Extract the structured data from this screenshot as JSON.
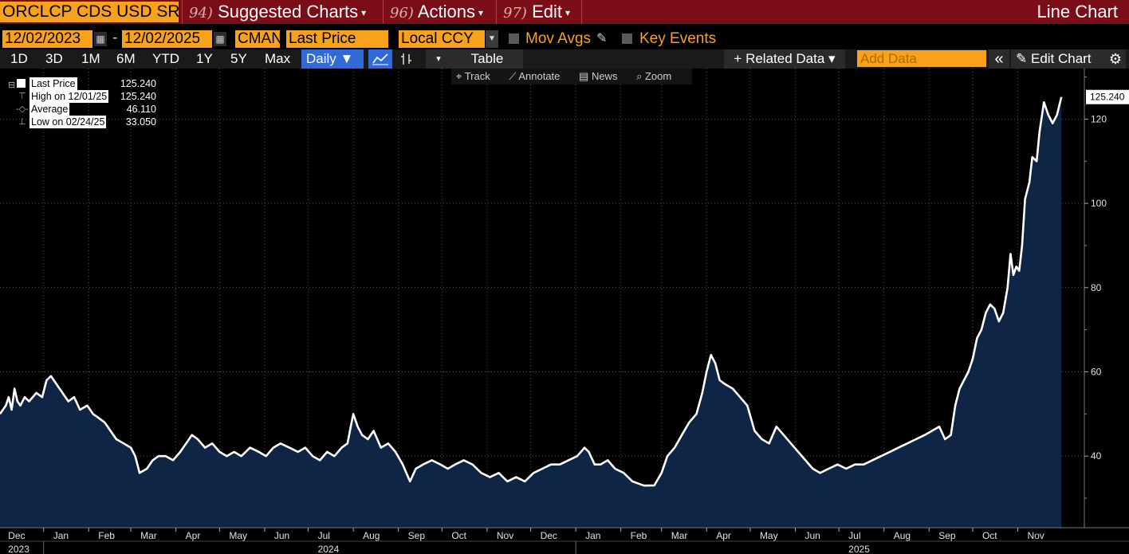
{
  "menubar": {
    "ticker": "ORCLCP CDS USD SR",
    "menus": [
      {
        "num": "94)",
        "label": "Suggested Charts"
      },
      {
        "num": "96)",
        "label": "Actions"
      },
      {
        "num": "97)",
        "label": "Edit"
      }
    ],
    "chart_title": "Line Chart"
  },
  "row2": {
    "start_date": "12/02/2023",
    "separator": "-",
    "end_date": "12/02/2025",
    "source": "CMAN",
    "field": "Last Price",
    "currency": "Local CCY",
    "mov_avgs": "Mov Avgs",
    "key_events": "Key Events"
  },
  "toolbar": {
    "ranges": [
      "1D",
      "3D",
      "1M",
      "6M",
      "YTD",
      "1Y",
      "5Y",
      "Max"
    ],
    "frequency": "Daily ▼",
    "table": "Table",
    "related_data": "+ Related Data ▾",
    "add_data_placeholder": "Add Data",
    "collapse": "«",
    "edit_chart": "Edit Chart",
    "subtools": [
      "Track",
      "Annotate",
      "News",
      "Zoom"
    ]
  },
  "legend": {
    "rows": [
      {
        "label": "Last Price",
        "value": "125.240"
      },
      {
        "label": "High on 12/01/25",
        "value": "125.240"
      },
      {
        "label": "Average",
        "value": "46.110"
      },
      {
        "label": "Low on 02/24/25",
        "value": "33.050"
      }
    ]
  },
  "colors": {
    "line": "#ffffff",
    "area": "#0f2546",
    "accent": "#f7a21a",
    "menubar": "#7a0d16",
    "selected": "#2f6ad8"
  },
  "chart_data": {
    "type": "area",
    "ylim": [
      23,
      132
    ],
    "yticks": [
      40,
      60,
      80,
      100,
      120
    ],
    "last_value_label": "125.240",
    "x_start": "2023-12-02",
    "x_end": "2025-12-02",
    "month_ticks": [
      {
        "date": "2023-12-01",
        "label": "Dec"
      },
      {
        "date": "2024-01-01",
        "label": "Jan"
      },
      {
        "date": "2024-02-01",
        "label": "Feb"
      },
      {
        "date": "2024-03-01",
        "label": "Mar"
      },
      {
        "date": "2024-04-01",
        "label": "Apr"
      },
      {
        "date": "2024-05-01",
        "label": "May"
      },
      {
        "date": "2024-06-01",
        "label": "Jun"
      },
      {
        "date": "2024-07-01",
        "label": "Jul"
      },
      {
        "date": "2024-08-01",
        "label": "Aug"
      },
      {
        "date": "2024-09-01",
        "label": "Sep"
      },
      {
        "date": "2024-10-01",
        "label": "Oct"
      },
      {
        "date": "2024-11-01",
        "label": "Nov"
      },
      {
        "date": "2024-12-01",
        "label": "Dec"
      },
      {
        "date": "2025-01-01",
        "label": "Jan"
      },
      {
        "date": "2025-02-01",
        "label": "Feb"
      },
      {
        "date": "2025-03-01",
        "label": "Mar"
      },
      {
        "date": "2025-04-01",
        "label": "Apr"
      },
      {
        "date": "2025-05-01",
        "label": "May"
      },
      {
        "date": "2025-06-01",
        "label": "Jun"
      },
      {
        "date": "2025-07-01",
        "label": "Jul"
      },
      {
        "date": "2025-08-01",
        "label": "Aug"
      },
      {
        "date": "2025-09-01",
        "label": "Sep"
      },
      {
        "date": "2025-10-01",
        "label": "Oct"
      },
      {
        "date": "2025-11-01",
        "label": "Nov"
      }
    ],
    "year_labels": [
      {
        "date": "2023-12-01",
        "label": "2023"
      },
      {
        "date": "2024-07-01",
        "label": "2024"
      },
      {
        "date": "2025-07-01",
        "label": "2025"
      }
    ],
    "year_dividers": [
      "2024-01-01",
      "2025-01-01"
    ],
    "series": [
      {
        "points": [
          [
            "2023-12-02",
            50
          ],
          [
            "2023-12-06",
            52
          ],
          [
            "2023-12-08",
            54
          ],
          [
            "2023-12-10",
            51
          ],
          [
            "2023-12-12",
            56
          ],
          [
            "2023-12-14",
            53
          ],
          [
            "2023-12-16",
            52
          ],
          [
            "2023-12-19",
            54
          ],
          [
            "2023-12-22",
            53
          ],
          [
            "2023-12-27",
            55
          ],
          [
            "2023-12-31",
            54
          ],
          [
            "2024-01-03",
            58
          ],
          [
            "2024-01-06",
            59
          ],
          [
            "2024-01-10",
            57
          ],
          [
            "2024-01-14",
            55
          ],
          [
            "2024-01-18",
            53
          ],
          [
            "2024-01-22",
            54
          ],
          [
            "2024-01-26",
            51
          ],
          [
            "2024-01-31",
            52
          ],
          [
            "2024-02-04",
            50
          ],
          [
            "2024-02-08",
            49
          ],
          [
            "2024-02-12",
            48
          ],
          [
            "2024-02-16",
            46
          ],
          [
            "2024-02-20",
            44
          ],
          [
            "2024-02-25",
            43
          ],
          [
            "2024-03-01",
            42
          ],
          [
            "2024-03-04",
            40
          ],
          [
            "2024-03-07",
            36
          ],
          [
            "2024-03-12",
            37
          ],
          [
            "2024-03-16",
            39
          ],
          [
            "2024-03-20",
            40
          ],
          [
            "2024-03-25",
            40
          ],
          [
            "2024-03-30",
            39
          ],
          [
            "2024-04-04",
            41
          ],
          [
            "2024-04-08",
            43
          ],
          [
            "2024-04-12",
            45
          ],
          [
            "2024-04-16",
            44
          ],
          [
            "2024-04-21",
            42
          ],
          [
            "2024-04-26",
            43
          ],
          [
            "2024-05-01",
            41
          ],
          [
            "2024-05-06",
            40
          ],
          [
            "2024-05-11",
            41
          ],
          [
            "2024-05-16",
            40
          ],
          [
            "2024-05-22",
            42
          ],
          [
            "2024-05-28",
            41
          ],
          [
            "2024-06-02",
            40
          ],
          [
            "2024-06-07",
            42
          ],
          [
            "2024-06-12",
            43
          ],
          [
            "2024-06-18",
            42
          ],
          [
            "2024-06-24",
            41
          ],
          [
            "2024-06-29",
            42
          ],
          [
            "2024-07-04",
            40
          ],
          [
            "2024-07-09",
            39
          ],
          [
            "2024-07-14",
            41
          ],
          [
            "2024-07-19",
            40
          ],
          [
            "2024-07-24",
            42
          ],
          [
            "2024-07-28",
            43
          ],
          [
            "2024-08-01",
            50
          ],
          [
            "2024-08-04",
            47
          ],
          [
            "2024-08-07",
            45
          ],
          [
            "2024-08-11",
            44
          ],
          [
            "2024-08-15",
            46
          ],
          [
            "2024-08-20",
            42
          ],
          [
            "2024-08-25",
            43
          ],
          [
            "2024-08-30",
            41
          ],
          [
            "2024-09-04",
            38
          ],
          [
            "2024-09-09",
            34
          ],
          [
            "2024-09-13",
            37
          ],
          [
            "2024-09-18",
            38
          ],
          [
            "2024-09-24",
            39
          ],
          [
            "2024-09-30",
            38
          ],
          [
            "2024-10-05",
            37
          ],
          [
            "2024-10-10",
            38
          ],
          [
            "2024-10-16",
            39
          ],
          [
            "2024-10-22",
            38
          ],
          [
            "2024-10-28",
            36
          ],
          [
            "2024-11-03",
            35
          ],
          [
            "2024-11-09",
            36
          ],
          [
            "2024-11-15",
            34
          ],
          [
            "2024-11-21",
            35
          ],
          [
            "2024-11-27",
            34
          ],
          [
            "2024-12-03",
            36
          ],
          [
            "2024-12-09",
            37
          ],
          [
            "2024-12-15",
            38
          ],
          [
            "2024-12-21",
            38
          ],
          [
            "2024-12-27",
            39
          ],
          [
            "2025-01-02",
            40
          ],
          [
            "2025-01-07",
            42
          ],
          [
            "2025-01-10",
            41
          ],
          [
            "2025-01-14",
            38
          ],
          [
            "2025-01-18",
            38
          ],
          [
            "2025-01-23",
            39
          ],
          [
            "2025-01-28",
            37
          ],
          [
            "2025-02-03",
            36
          ],
          [
            "2025-02-09",
            34
          ],
          [
            "2025-02-17",
            33
          ],
          [
            "2025-02-24",
            33.05
          ],
          [
            "2025-03-01",
            36
          ],
          [
            "2025-03-05",
            40
          ],
          [
            "2025-03-10",
            42
          ],
          [
            "2025-03-15",
            45
          ],
          [
            "2025-03-20",
            48
          ],
          [
            "2025-03-25",
            50
          ],
          [
            "2025-03-29",
            55
          ],
          [
            "2025-04-01",
            60
          ],
          [
            "2025-04-04",
            64
          ],
          [
            "2025-04-07",
            62
          ],
          [
            "2025-04-10",
            58
          ],
          [
            "2025-04-14",
            57
          ],
          [
            "2025-04-19",
            56
          ],
          [
            "2025-04-24",
            54
          ],
          [
            "2025-04-29",
            52
          ],
          [
            "2025-05-04",
            46
          ],
          [
            "2025-05-09",
            44
          ],
          [
            "2025-05-14",
            43
          ],
          [
            "2025-05-19",
            47
          ],
          [
            "2025-05-24",
            45
          ],
          [
            "2025-05-29",
            43
          ],
          [
            "2025-06-03",
            41
          ],
          [
            "2025-06-08",
            39
          ],
          [
            "2025-06-13",
            37
          ],
          [
            "2025-06-18",
            36
          ],
          [
            "2025-06-24",
            37
          ],
          [
            "2025-06-30",
            38
          ],
          [
            "2025-07-06",
            37
          ],
          [
            "2025-07-12",
            38
          ],
          [
            "2025-07-18",
            38
          ],
          [
            "2025-07-24",
            39
          ],
          [
            "2025-07-30",
            40
          ],
          [
            "2025-08-05",
            41
          ],
          [
            "2025-08-11",
            42
          ],
          [
            "2025-08-17",
            43
          ],
          [
            "2025-08-23",
            44
          ],
          [
            "2025-08-29",
            45
          ],
          [
            "2025-09-03",
            46
          ],
          [
            "2025-09-08",
            47
          ],
          [
            "2025-09-12",
            44
          ],
          [
            "2025-09-16",
            45
          ],
          [
            "2025-09-19",
            52
          ],
          [
            "2025-09-22",
            56
          ],
          [
            "2025-09-25",
            58
          ],
          [
            "2025-09-28",
            60
          ],
          [
            "2025-10-01",
            63
          ],
          [
            "2025-10-04",
            68
          ],
          [
            "2025-10-07",
            70
          ],
          [
            "2025-10-10",
            74
          ],
          [
            "2025-10-13",
            76
          ],
          [
            "2025-10-16",
            75
          ],
          [
            "2025-10-19",
            72
          ],
          [
            "2025-10-22",
            74
          ],
          [
            "2025-10-25",
            80
          ],
          [
            "2025-10-27",
            88
          ],
          [
            "2025-10-29",
            83
          ],
          [
            "2025-10-31",
            85
          ],
          [
            "2025-11-02",
            84
          ],
          [
            "2025-11-04",
            90
          ],
          [
            "2025-11-06",
            101
          ],
          [
            "2025-11-09",
            105
          ],
          [
            "2025-11-11",
            111
          ],
          [
            "2025-11-14",
            110
          ],
          [
            "2025-11-16",
            117
          ],
          [
            "2025-11-19",
            124
          ],
          [
            "2025-11-22",
            121
          ],
          [
            "2025-11-25",
            119
          ],
          [
            "2025-11-28",
            121
          ],
          [
            "2025-12-01",
            125.24
          ]
        ]
      }
    ]
  }
}
